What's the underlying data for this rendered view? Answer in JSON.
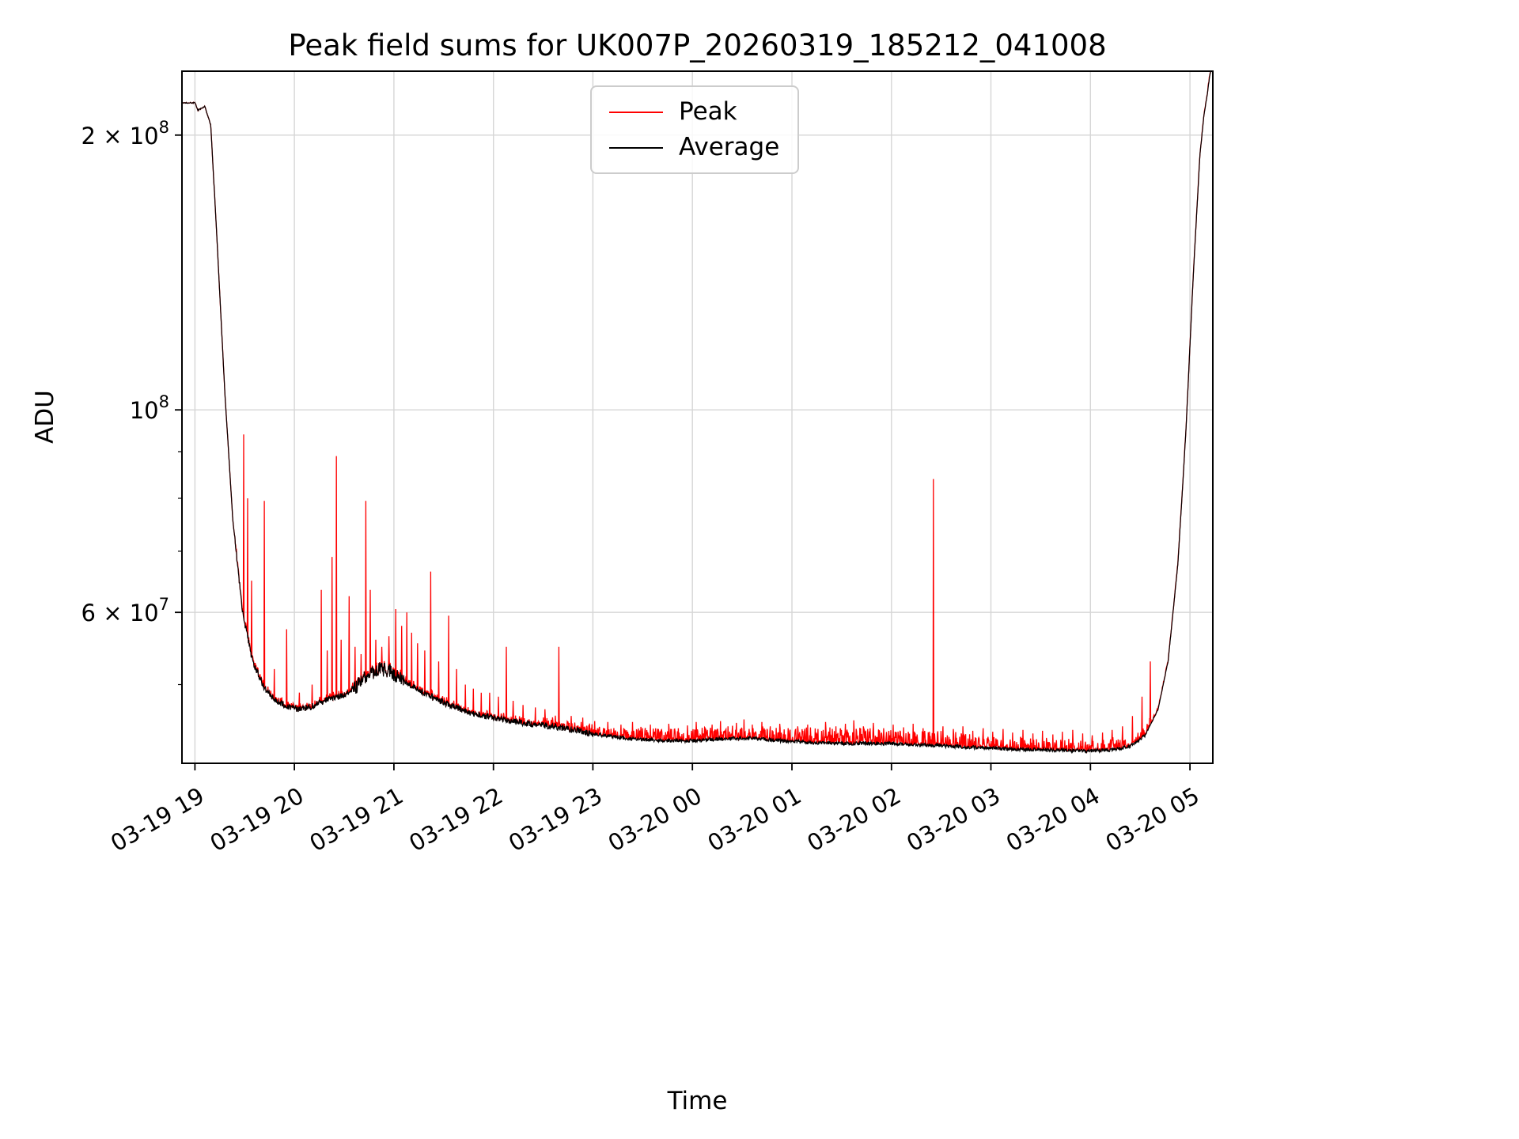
{
  "figure": {
    "title": "Peak field sums for UK007P_20260319_185212_041008",
    "xlabel": "Time",
    "ylabel": "ADU"
  },
  "legend": {
    "items": [
      {
        "label": "Peak",
        "color": "#ff0000"
      },
      {
        "label": "Average",
        "color": "#000000"
      }
    ]
  },
  "chart_data": {
    "type": "line",
    "title": "Peak field sums for UK007P_20260319_185212_041008",
    "xlabel": "Time",
    "ylabel": "ADU",
    "y_scale": "log",
    "x_encoding": "decimal hours; 19 = Mar-19 19:00, 24+ = Mar-20",
    "x_range": [
      18.87,
      29.23
    ],
    "y_range": [
      41000000,
      235000000
    ],
    "grid": true,
    "legend_position": "upper center",
    "colors": {
      "grid": "#cccccc",
      "frame": "#000000",
      "background": "#ffffff",
      "peak": "#ff0000",
      "average": "#000000"
    },
    "x_ticks": [
      {
        "t": 19,
        "label": "03-19 19"
      },
      {
        "t": 20,
        "label": "03-19 20"
      },
      {
        "t": 21,
        "label": "03-19 21"
      },
      {
        "t": 22,
        "label": "03-19 22"
      },
      {
        "t": 23,
        "label": "03-19 23"
      },
      {
        "t": 24,
        "label": "03-20 00"
      },
      {
        "t": 25,
        "label": "03-20 01"
      },
      {
        "t": 26,
        "label": "03-20 02"
      },
      {
        "t": 27,
        "label": "03-20 03"
      },
      {
        "t": 28,
        "label": "03-20 04"
      },
      {
        "t": 29,
        "label": "03-20 05"
      }
    ],
    "y_ticks_major": [
      {
        "value": 200000000,
        "mantissa": "2 × 10",
        "exp": "8"
      },
      {
        "value": 100000000,
        "mantissa": "10",
        "exp": "8"
      },
      {
        "value": 60000000,
        "mantissa": "6 × 10",
        "exp": "7"
      }
    ],
    "y_ticks_minor": [
      50000000,
      70000000,
      80000000,
      90000000
    ],
    "noise": {
      "avg_jitter": [
        [
          18.87,
          19.4,
          0.0015
        ],
        [
          19.4,
          20.6,
          0.008
        ],
        [
          20.6,
          21.1,
          0.018
        ],
        [
          21.1,
          23.0,
          0.008
        ],
        [
          23.0,
          28.55,
          0.0045
        ],
        [
          28.55,
          29.23,
          0.0015
        ]
      ],
      "peak_fringe": [
        [
          18.87,
          19.4,
          0.0
        ],
        [
          19.4,
          22.5,
          0.01
        ],
        [
          22.5,
          23.3,
          0.022
        ],
        [
          23.3,
          25.0,
          0.03
        ],
        [
          25.0,
          26.8,
          0.04
        ],
        [
          26.8,
          28.3,
          0.028
        ],
        [
          28.3,
          28.6,
          0.02
        ],
        [
          28.6,
          29.23,
          0.006
        ]
      ]
    },
    "series": [
      {
        "name": "Peak",
        "color": "#ff0000",
        "spikes": [
          [
            19.49,
            94000000.0
          ],
          [
            19.53,
            80000000.0
          ],
          [
            19.57,
            65000000.0
          ],
          [
            19.7,
            79500000.0
          ],
          [
            19.8,
            52000000.0
          ],
          [
            19.92,
            57500000.0
          ],
          [
            20.05,
            49000000.0
          ],
          [
            20.18,
            50000000.0
          ],
          [
            20.27,
            63500000.0
          ],
          [
            20.33,
            54500000.0
          ],
          [
            20.38,
            69000000.0
          ],
          [
            20.42,
            89000000.0
          ],
          [
            20.47,
            56000000.0
          ],
          [
            20.55,
            62500000.0
          ],
          [
            20.61,
            55000000.0
          ],
          [
            20.67,
            54000000.0
          ],
          [
            20.72,
            79500000.0
          ],
          [
            20.76,
            63500000.0
          ],
          [
            20.82,
            56000000.0
          ],
          [
            20.88,
            55000000.0
          ],
          [
            20.95,
            56500000.0
          ],
          [
            21.02,
            60500000.0
          ],
          [
            21.08,
            58000000.0
          ],
          [
            21.13,
            60000000.0
          ],
          [
            21.18,
            57000000.0
          ],
          [
            21.24,
            55500000.0
          ],
          [
            21.31,
            54500000.0
          ],
          [
            21.37,
            66500000.0
          ],
          [
            21.45,
            53000000.0
          ],
          [
            21.55,
            59500000.0
          ],
          [
            21.63,
            52000000.0
          ],
          [
            21.72,
            50000000.0
          ],
          [
            21.8,
            49500000.0
          ],
          [
            21.88,
            49000000.0
          ],
          [
            21.96,
            49000000.0
          ],
          [
            22.05,
            48500000.0
          ],
          [
            22.13,
            55000000.0
          ],
          [
            22.2,
            48000000.0
          ],
          [
            22.3,
            47500000.0
          ],
          [
            22.42,
            47200000.0
          ],
          [
            22.52,
            47000000.0
          ],
          [
            22.66,
            55000000.0
          ],
          [
            22.78,
            46200000.0
          ],
          [
            22.9,
            46000000.0
          ],
          [
            23.02,
            45600000.0
          ],
          [
            23.15,
            45500000.0
          ],
          [
            23.28,
            45200000.0
          ],
          [
            23.4,
            45500000.0
          ],
          [
            23.5,
            44800000.0
          ],
          [
            23.58,
            45200000.0
          ],
          [
            23.66,
            44700000.0
          ],
          [
            23.76,
            45300000.0
          ],
          [
            23.86,
            44800000.0
          ],
          [
            23.95,
            45100000.0
          ],
          [
            24.04,
            45500000.0
          ],
          [
            24.12,
            44900000.0
          ],
          [
            24.2,
            45200000.0
          ],
          [
            24.28,
            45600000.0
          ],
          [
            24.36,
            45000000.0
          ],
          [
            24.44,
            45400000.0
          ],
          [
            24.52,
            45800000.0
          ],
          [
            24.6,
            45200000.0
          ],
          [
            24.7,
            45500000.0
          ],
          [
            24.78,
            45000000.0
          ],
          [
            24.88,
            45300000.0
          ],
          [
            24.96,
            44800000.0
          ],
          [
            25.06,
            45000000.0
          ],
          [
            25.16,
            45200000.0
          ],
          [
            25.26,
            44700000.0
          ],
          [
            25.34,
            45500000.0
          ],
          [
            25.44,
            45000000.0
          ],
          [
            25.54,
            45300000.0
          ],
          [
            25.62,
            45700000.0
          ],
          [
            25.72,
            45000000.0
          ],
          [
            25.82,
            45400000.0
          ],
          [
            25.92,
            44800000.0
          ],
          [
            26.02,
            45200000.0
          ],
          [
            26.12,
            44900000.0
          ],
          [
            26.22,
            45300000.0
          ],
          [
            26.32,
            44800000.0
          ],
          [
            26.42,
            84000000.0
          ],
          [
            26.52,
            45000000.0
          ],
          [
            26.62,
            44700000.0
          ],
          [
            26.72,
            45000000.0
          ],
          [
            26.82,
            44500000.0
          ],
          [
            26.92,
            44800000.0
          ],
          [
            27.02,
            44400000.0
          ],
          [
            27.12,
            44700000.0
          ],
          [
            27.22,
            44300000.0
          ],
          [
            27.32,
            44600000.0
          ],
          [
            27.42,
            44200000.0
          ],
          [
            27.52,
            44500000.0
          ],
          [
            27.62,
            44100000.0
          ],
          [
            27.72,
            44400000.0
          ],
          [
            27.82,
            44600000.0
          ],
          [
            27.92,
            44200000.0
          ],
          [
            28.02,
            44000000.0
          ],
          [
            28.12,
            44300000.0
          ],
          [
            28.22,
            44600000.0
          ],
          [
            28.32,
            45000000.0
          ],
          [
            28.42,
            46200000.0
          ],
          [
            28.52,
            48500000.0
          ],
          [
            28.6,
            53000000.0
          ]
        ]
      },
      {
        "name": "Average",
        "color": "#000000",
        "keypoints": [
          [
            18.87,
            217000000.0
          ],
          [
            19.0,
            217000000.0
          ],
          [
            19.03,
            213000000.0
          ],
          [
            19.1,
            215000000.0
          ],
          [
            19.16,
            205000000.0
          ],
          [
            19.22,
            155000000.0
          ],
          [
            19.3,
            105000000.0
          ],
          [
            19.38,
            76000000.0
          ],
          [
            19.48,
            60000000.0
          ],
          [
            19.58,
            53000000.0
          ],
          [
            19.7,
            49500000.0
          ],
          [
            19.82,
            48000000.0
          ],
          [
            19.95,
            47200000.0
          ],
          [
            20.05,
            47000000.0
          ],
          [
            20.15,
            47200000.0
          ],
          [
            20.3,
            48000000.0
          ],
          [
            20.45,
            48500000.0
          ],
          [
            20.6,
            49500000.0
          ],
          [
            20.72,
            51000000.0
          ],
          [
            20.85,
            52000000.0
          ],
          [
            20.95,
            51800000.0
          ],
          [
            21.1,
            50500000.0
          ],
          [
            21.3,
            49000000.0
          ],
          [
            21.5,
            47800000.0
          ],
          [
            21.7,
            46800000.0
          ],
          [
            21.9,
            46200000.0
          ],
          [
            22.1,
            45800000.0
          ],
          [
            22.35,
            45300000.0
          ],
          [
            22.6,
            45000000.0
          ],
          [
            22.85,
            44500000.0
          ],
          [
            23.1,
            44000000.0
          ],
          [
            23.4,
            43600000.0
          ],
          [
            23.7,
            43400000.0
          ],
          [
            24.0,
            43400000.0
          ],
          [
            24.3,
            43600000.0
          ],
          [
            24.6,
            43700000.0
          ],
          [
            24.9,
            43400000.0
          ],
          [
            25.2,
            43200000.0
          ],
          [
            25.6,
            43100000.0
          ],
          [
            26.0,
            43100000.0
          ],
          [
            26.4,
            42900000.0
          ],
          [
            26.8,
            42700000.0
          ],
          [
            27.2,
            42500000.0
          ],
          [
            27.6,
            42400000.0
          ],
          [
            28.0,
            42300000.0
          ],
          [
            28.2,
            42400000.0
          ],
          [
            28.4,
            42800000.0
          ],
          [
            28.55,
            44000000.0
          ],
          [
            28.68,
            47000000.0
          ],
          [
            28.78,
            53000000.0
          ],
          [
            28.88,
            68000000.0
          ],
          [
            28.96,
            95000000.0
          ],
          [
            29.04,
            145000000.0
          ],
          [
            29.1,
            190000000.0
          ],
          [
            29.14,
            210000000.0
          ],
          [
            29.17,
            220000000.0
          ],
          [
            29.2,
            233000000.0
          ],
          [
            29.23,
            240000000.0
          ]
        ]
      }
    ]
  }
}
